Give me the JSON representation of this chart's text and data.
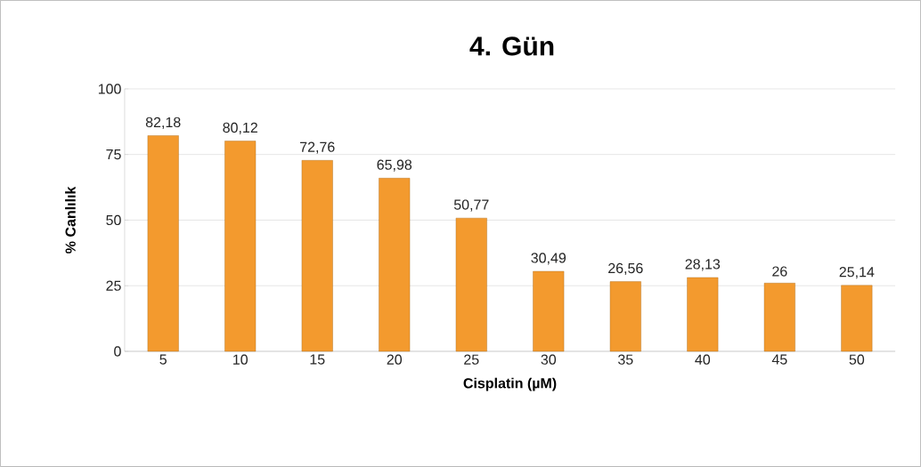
{
  "chart_data": {
    "type": "bar",
    "title": "4. Gün",
    "xlabel": "Cisplatin (µM)",
    "ylabel": "% Canlılık",
    "categories": [
      "5",
      "10",
      "15",
      "20",
      "25",
      "30",
      "35",
      "40",
      "45",
      "50"
    ],
    "values": [
      82.18,
      80.12,
      72.76,
      65.98,
      50.77,
      30.49,
      26.56,
      28.13,
      26,
      25.14
    ],
    "value_labels": [
      "82,18",
      "80,12",
      "72,76",
      "65,98",
      "50,77",
      "30,49",
      "26,56",
      "28,13",
      "26",
      "25,14"
    ],
    "color": "#f39a2e",
    "ylim": [
      0,
      100
    ],
    "yticks": [
      0,
      25,
      50,
      75,
      100
    ],
    "grid": "y"
  }
}
